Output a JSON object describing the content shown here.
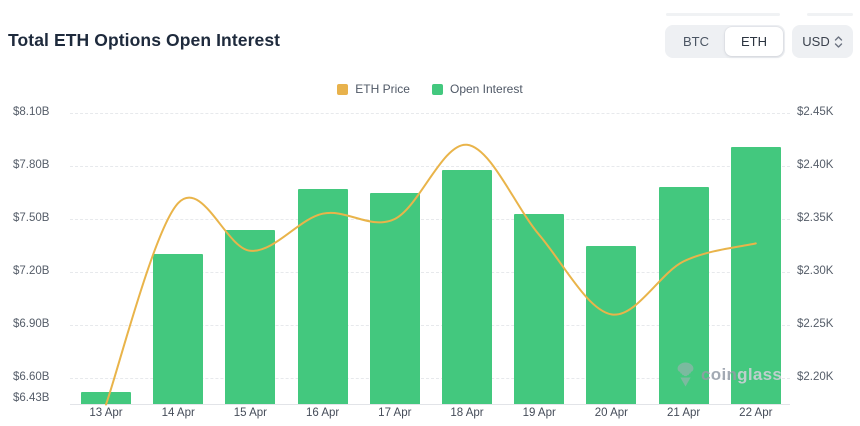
{
  "header": {
    "title": "Total ETH Options Open Interest"
  },
  "controls": {
    "coin_toggle": {
      "options": [
        "BTC",
        "ETH"
      ],
      "selected": "ETH"
    },
    "currency_select": {
      "value": "USD"
    }
  },
  "legend": [
    {
      "label": "ETH Price",
      "color": "#E8B24C"
    },
    {
      "label": "Open Interest",
      "color": "#43C87E"
    }
  ],
  "watermark": {
    "text_primary": "coin",
    "text_secondary": "glass"
  },
  "colors": {
    "bar": "#43C87E",
    "line": "#E9B44A",
    "grid": "#e7e9ec",
    "title": "#1e2a3c"
  },
  "chart_data": {
    "type": "bar+line",
    "title": "Total ETH Options Open Interest",
    "categories": [
      "13 Apr",
      "14 Apr",
      "15 Apr",
      "16 Apr",
      "17 Apr",
      "18 Apr",
      "19 Apr",
      "20 Apr",
      "21 Apr",
      "22 Apr"
    ],
    "series": [
      {
        "name": "Open Interest",
        "type": "bar",
        "axis": "left",
        "unit": "USD billions",
        "color": "#43C87E",
        "values": [
          6.52,
          7.3,
          7.44,
          7.67,
          7.65,
          7.78,
          7.53,
          7.35,
          7.68,
          7.91
        ]
      },
      {
        "name": "ETH Price",
        "type": "line",
        "axis": "right",
        "unit": "USD thousands",
        "color": "#E9B44A",
        "values": [
          2.175,
          2.365,
          2.32,
          2.355,
          2.35,
          2.42,
          2.335,
          2.26,
          2.31,
          2.327
        ]
      }
    ],
    "left_axis": {
      "ticks": [
        "$8.10B",
        "$7.80B",
        "$7.50B",
        "$7.20B",
        "$6.90B",
        "$6.60B",
        "$6.43B"
      ],
      "tick_values": [
        8.1,
        7.8,
        7.5,
        7.2,
        6.9,
        6.6,
        6.43
      ],
      "min": 6.43,
      "max": 8.1
    },
    "right_axis": {
      "ticks": [
        "$2.45K",
        "$2.40K",
        "$2.35K",
        "$2.30K",
        "$2.25K",
        "$2.20K"
      ],
      "tick_values": [
        2.45,
        2.4,
        2.35,
        2.3,
        2.25,
        2.2
      ],
      "min": 2.2,
      "max": 2.45
    },
    "grid": "horizontal dashed",
    "legend_position": "top center"
  }
}
